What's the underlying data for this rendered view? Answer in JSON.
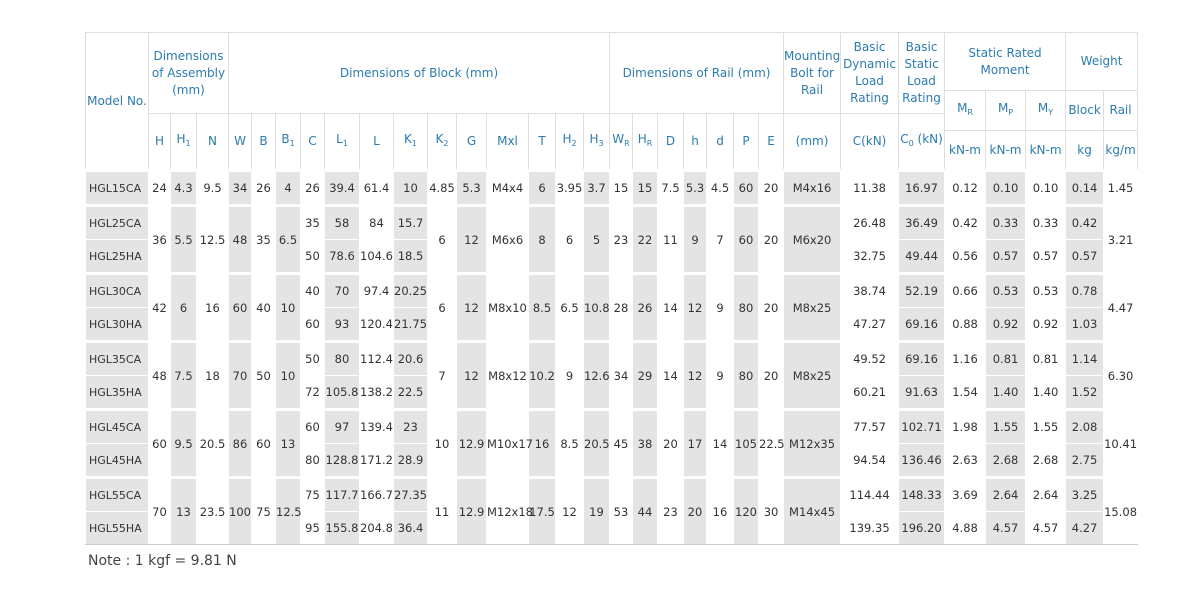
{
  "header": {
    "model": "Model No.",
    "assembly": "Dimensions of Assembly (mm)",
    "block": "Dimensions of Block (mm)",
    "rail": "Dimensions of Rail (mm)",
    "bolt": "Mounting Bolt for Rail",
    "dynamic": "Basic Dynamic Load Rating",
    "static": "Basic Static Load Rating",
    "moment": "Static Rated Moment",
    "weight": "Weight",
    "symbols": [
      {
        "text": "H"
      },
      {
        "text": "H",
        "sub": "1"
      },
      {
        "text": "N"
      },
      {
        "text": "W"
      },
      {
        "text": "B"
      },
      {
        "text": "B",
        "sub": "1"
      },
      {
        "text": "C"
      },
      {
        "text": "L",
        "sub": "1"
      },
      {
        "text": "L"
      },
      {
        "text": "K",
        "sub": "1"
      },
      {
        "text": "K",
        "sub": "2"
      },
      {
        "text": "G"
      },
      {
        "text": "Mxl"
      },
      {
        "text": "T"
      },
      {
        "text": "H",
        "sub": "2"
      },
      {
        "text": "H",
        "sub": "3"
      },
      {
        "text": "W",
        "sub": "R"
      },
      {
        "text": "H",
        "sub": "R"
      },
      {
        "text": "D"
      },
      {
        "text": "h"
      },
      {
        "text": "d"
      },
      {
        "text": "P"
      },
      {
        "text": "E"
      }
    ],
    "moment_symbols": [
      {
        "text": "M",
        "sub": "R"
      },
      {
        "text": "M",
        "sub": "P"
      },
      {
        "text": "M",
        "sub": "Y"
      }
    ],
    "weight_labels": [
      "Block",
      "Rail"
    ],
    "units": {
      "bolt": {
        "text": "(mm)"
      },
      "dynamic": {
        "text": "C(kN)"
      },
      "static": {
        "text": "C",
        "sub": "0",
        "after": " (kN)"
      },
      "moment": [
        "kN-m",
        "kN-m",
        "kN-m"
      ],
      "weight": [
        "kg",
        "kg/m"
      ]
    }
  },
  "table": {
    "groups": [
      {
        "assembly": [
          "24",
          "4.3",
          "9.5",
          "34",
          "26",
          "4"
        ],
        "rows": [
          {
            "model": "HGL15CA",
            "block": [
              "26",
              "39.4",
              "61.4",
              "10"
            ],
            "ratings": [
              "11.38",
              "16.97",
              "0.12",
              "0.10",
              "0.10",
              "0.14"
            ]
          }
        ],
        "rail": [
          "4.85",
          "5.3",
          "M4x4",
          "6",
          "3.95",
          "3.7",
          "15",
          "15",
          "7.5",
          "5.3",
          "4.5",
          "60",
          "20",
          "M4x16"
        ],
        "rail_weight": "1.45"
      },
      {
        "assembly": [
          "36",
          "5.5",
          "12.5",
          "48",
          "35",
          "6.5"
        ],
        "rows": [
          {
            "model": "HGL25CA",
            "block": [
              "35",
              "58",
              "84",
              "15.7"
            ],
            "ratings": [
              "26.48",
              "36.49",
              "0.42",
              "0.33",
              "0.33",
              "0.42"
            ]
          },
          {
            "model": "HGL25HA",
            "block": [
              "50",
              "78.6",
              "104.6",
              "18.5"
            ],
            "ratings": [
              "32.75",
              "49.44",
              "0.56",
              "0.57",
              "0.57",
              "0.57"
            ]
          }
        ],
        "rail": [
          "6",
          "12",
          "M6x6",
          "8",
          "6",
          "5",
          "23",
          "22",
          "11",
          "9",
          "7",
          "60",
          "20",
          "M6x20"
        ],
        "rail_weight": "3.21"
      },
      {
        "assembly": [
          "42",
          "6",
          "16",
          "60",
          "40",
          "10"
        ],
        "rows": [
          {
            "model": "HGL30CA",
            "block": [
              "40",
              "70",
              "97.4",
              "20.25"
            ],
            "ratings": [
              "38.74",
              "52.19",
              "0.66",
              "0.53",
              "0.53",
              "0.78"
            ]
          },
          {
            "model": "HGL30HA",
            "block": [
              "60",
              "93",
              "120.4",
              "21.75"
            ],
            "ratings": [
              "47.27",
              "69.16",
              "0.88",
              "0.92",
              "0.92",
              "1.03"
            ]
          }
        ],
        "rail": [
          "6",
          "12",
          "M8x10",
          "8.5",
          "6.5",
          "10.8",
          "28",
          "26",
          "14",
          "12",
          "9",
          "80",
          "20",
          "M8x25"
        ],
        "rail_weight": "4.47"
      },
      {
        "assembly": [
          "48",
          "7.5",
          "18",
          "70",
          "50",
          "10"
        ],
        "rows": [
          {
            "model": "HGL35CA",
            "block": [
              "50",
              "80",
              "112.4",
              "20.6"
            ],
            "ratings": [
              "49.52",
              "69.16",
              "1.16",
              "0.81",
              "0.81",
              "1.14"
            ]
          },
          {
            "model": "HGL35HA",
            "block": [
              "72",
              "105.8",
              "138.2",
              "22.5"
            ],
            "ratings": [
              "60.21",
              "91.63",
              "1.54",
              "1.40",
              "1.40",
              "1.52"
            ]
          }
        ],
        "rail": [
          "7",
          "12",
          "M8x12",
          "10.2",
          "9",
          "12.6",
          "34",
          "29",
          "14",
          "12",
          "9",
          "80",
          "20",
          "M8x25"
        ],
        "rail_weight": "6.30"
      },
      {
        "assembly": [
          "60",
          "9.5",
          "20.5",
          "86",
          "60",
          "13"
        ],
        "rows": [
          {
            "model": "HGL45CA",
            "block": [
              "60",
              "97",
              "139.4",
              "23"
            ],
            "ratings": [
              "77.57",
              "102.71",
              "1.98",
              "1.55",
              "1.55",
              "2.08"
            ]
          },
          {
            "model": "HGL45HA",
            "block": [
              "80",
              "128.8",
              "171.2",
              "28.9"
            ],
            "ratings": [
              "94.54",
              "136.46",
              "2.63",
              "2.68",
              "2.68",
              "2.75"
            ]
          }
        ],
        "rail": [
          "10",
          "12.9",
          "M10x17",
          "16",
          "8.5",
          "20.5",
          "45",
          "38",
          "20",
          "17",
          "14",
          "105",
          "22.5",
          "M12x35"
        ],
        "rail_weight": "10.41"
      },
      {
        "assembly": [
          "70",
          "13",
          "23.5",
          "100",
          "75",
          "12.5"
        ],
        "rows": [
          {
            "model": "HGL55CA",
            "block": [
              "75",
              "117.7",
              "166.7",
              "27.35"
            ],
            "ratings": [
              "114.44",
              "148.33",
              "3.69",
              "2.64",
              "2.64",
              "3.25"
            ]
          },
          {
            "model": "HGL55HA",
            "block": [
              "95",
              "155.8",
              "204.8",
              "36.4"
            ],
            "ratings": [
              "139.35",
              "196.20",
              "4.88",
              "4.57",
              "4.57",
              "4.27"
            ]
          }
        ],
        "rail": [
          "11",
          "12.9",
          "M12x18",
          "17.5",
          "12",
          "19",
          "53",
          "44",
          "23",
          "20",
          "16",
          "120",
          "30",
          "M14x45"
        ],
        "rail_weight": "15.08"
      }
    ]
  },
  "note": "Note : 1 kgf = 9.81 N"
}
